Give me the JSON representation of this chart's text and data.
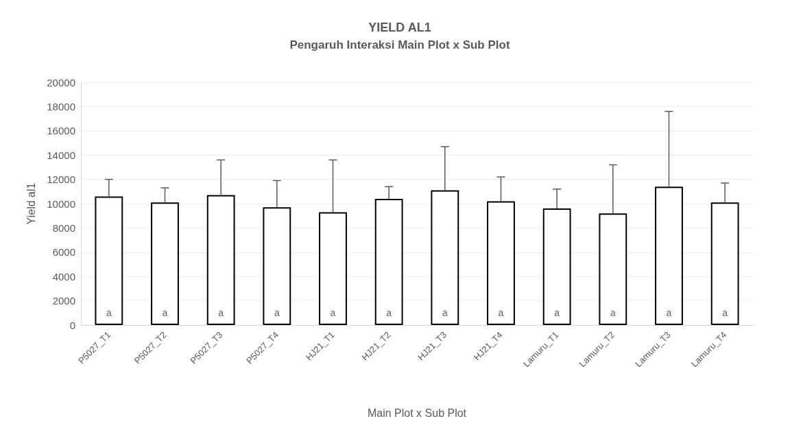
{
  "chart_data": {
    "type": "bar",
    "title": "YIELD AL1",
    "subtitle": "Pengaruh Interaksi Main Plot x Sub Plot",
    "xlabel": "Main Plot x Sub Plot",
    "ylabel": "Yield al1",
    "categories": [
      "P5027_T1",
      "P5027_T2",
      "P5027_T3",
      "P5027_T4",
      "HJ21_T1",
      "HJ21_T2",
      "HJ21_T3",
      "HJ21_T4",
      "Lamuru_T1",
      "Lamuru_T2",
      "Lamuru_T3",
      "Lamuru_T4"
    ],
    "values": [
      10600,
      10100,
      10700,
      9700,
      9300,
      10400,
      11100,
      10200,
      9600,
      9200,
      11400,
      10100
    ],
    "errors": [
      [
        10600,
        12000
      ],
      [
        10100,
        11300
      ],
      [
        10700,
        13600
      ],
      [
        9700,
        11900
      ],
      [
        9300,
        13600
      ],
      [
        10400,
        11400
      ],
      [
        11100,
        14700
      ],
      [
        10200,
        12200
      ],
      [
        9600,
        11200
      ],
      [
        9200,
        13200
      ],
      [
        11400,
        17600
      ],
      [
        10100,
        11700
      ]
    ],
    "color": "#ffffff",
    "ylim": [
      0,
      20000
    ],
    "yticks": [
      0,
      2000,
      4000,
      6000,
      8000,
      10000,
      12000,
      14000,
      16000,
      18000,
      20000
    ],
    "grid": "y",
    "annotations": [
      {
        "text": "a",
        "x": "P5027_T1",
        "y": 1000
      },
      {
        "text": "a",
        "x": "P5027_T2",
        "y": 1000
      },
      {
        "text": "a",
        "x": "P5027_T3",
        "y": 1000
      },
      {
        "text": "a",
        "x": "P5027_T4",
        "y": 1000
      },
      {
        "text": "a",
        "x": "HJ21_T1",
        "y": 1000
      },
      {
        "text": "a",
        "x": "HJ21_T2",
        "y": 1000
      },
      {
        "text": "a",
        "x": "HJ21_T3",
        "y": 1000
      },
      {
        "text": "a",
        "x": "HJ21_T4",
        "y": 1000
      },
      {
        "text": "a",
        "x": "Lamuru_T1",
        "y": 1000
      },
      {
        "text": "a",
        "x": "Lamuru_T2",
        "y": 1000
      },
      {
        "text": "a",
        "x": "Lamuru_T3",
        "y": 1000
      },
      {
        "text": "a",
        "x": "Lamuru_T4",
        "y": 1000
      }
    ]
  }
}
